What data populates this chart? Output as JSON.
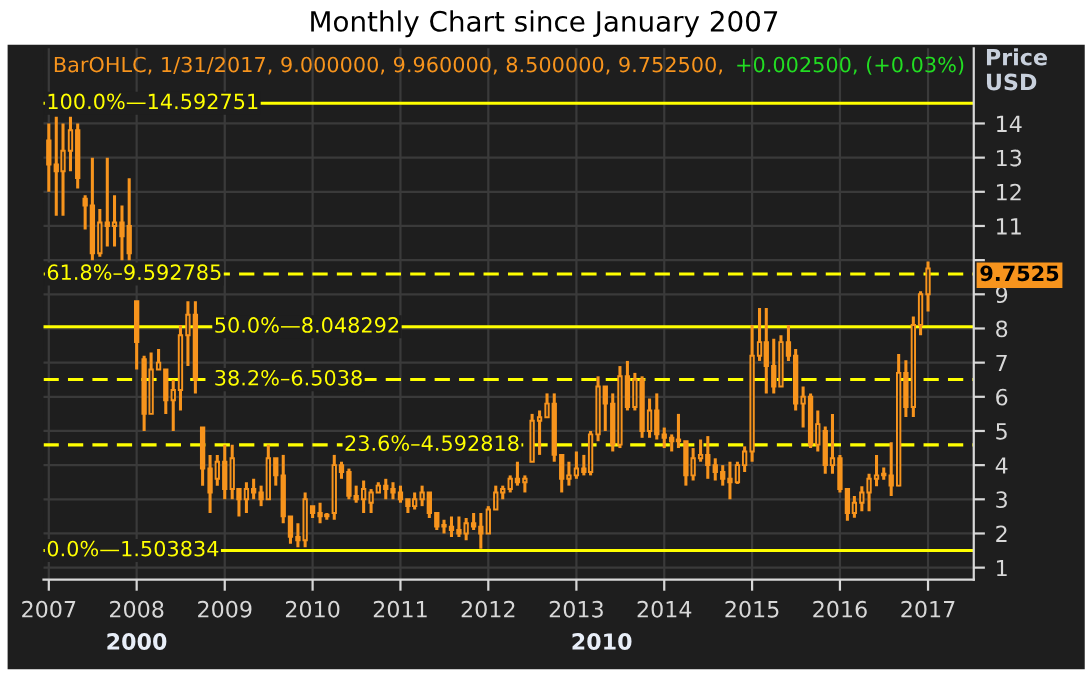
{
  "chart_data": {
    "type": "candlestick",
    "title": "Monthly Chart since January 2007",
    "ylabel": "Price\nUSD",
    "x": [
      "2007-01",
      "2007-02",
      "2007-03",
      "2007-04",
      "2007-05",
      "2007-06",
      "2007-07",
      "2007-08",
      "2007-09",
      "2007-10",
      "2007-11",
      "2007-12",
      "2008-01",
      "2008-02",
      "2008-03",
      "2008-04",
      "2008-05",
      "2008-06",
      "2008-07",
      "2008-08",
      "2008-09",
      "2008-10",
      "2008-11",
      "2008-12",
      "2009-01",
      "2009-02",
      "2009-03",
      "2009-04",
      "2009-05",
      "2009-06",
      "2009-07",
      "2009-08",
      "2009-09",
      "2009-10",
      "2009-11",
      "2009-12",
      "2010-01",
      "2010-02",
      "2010-03",
      "2010-04",
      "2010-05",
      "2010-06",
      "2010-07",
      "2010-08",
      "2010-09",
      "2010-10",
      "2010-11",
      "2010-12",
      "2011-01",
      "2011-02",
      "2011-03",
      "2011-04",
      "2011-05",
      "2011-06",
      "2011-07",
      "2011-08",
      "2011-09",
      "2011-10",
      "2011-11",
      "2011-12",
      "2012-01",
      "2012-02",
      "2012-03",
      "2012-04",
      "2012-05",
      "2012-06",
      "2012-07",
      "2012-08",
      "2012-09",
      "2012-10",
      "2012-11",
      "2012-12",
      "2013-01",
      "2013-02",
      "2013-03",
      "2013-04",
      "2013-05",
      "2013-06",
      "2013-07",
      "2013-08",
      "2013-09",
      "2013-10",
      "2013-11",
      "2013-12",
      "2014-01",
      "2014-02",
      "2014-03",
      "2014-04",
      "2014-05",
      "2014-06",
      "2014-07",
      "2014-08",
      "2014-09",
      "2014-10",
      "2014-11",
      "2014-12",
      "2015-01",
      "2015-02",
      "2015-03",
      "2015-04",
      "2015-05",
      "2015-06",
      "2015-07",
      "2015-08",
      "2015-09",
      "2015-10",
      "2015-11",
      "2015-12",
      "2016-01",
      "2016-02",
      "2016-03",
      "2016-04",
      "2016-05",
      "2016-06",
      "2016-07",
      "2016-08",
      "2016-09",
      "2016-10",
      "2016-11",
      "2016-12",
      "2017-01"
    ],
    "series": [
      {
        "color": "#f7941d",
        "ohlc": [
          [
            13.5,
            14.0,
            12.0,
            12.8
          ],
          [
            12.8,
            14.2,
            11.3,
            12.6
          ],
          [
            12.6,
            14.0,
            11.3,
            13.2
          ],
          [
            13.2,
            14.2,
            12.6,
            13.8
          ],
          [
            13.8,
            14.0,
            12.1,
            12.4
          ],
          [
            11.8,
            11.9,
            10.9,
            11.6
          ],
          [
            11.6,
            13.0,
            10.0,
            10.2
          ],
          [
            10.2,
            11.5,
            10.1,
            11.1
          ],
          [
            11.1,
            13.0,
            10.4,
            11.0
          ],
          [
            11.0,
            11.9,
            10.4,
            11.1
          ],
          [
            11.1,
            11.6,
            10.0,
            10.7
          ],
          [
            11.0,
            12.4,
            10.0,
            10.2
          ],
          [
            8.8,
            8.8,
            6.8,
            7.6
          ],
          [
            7.1,
            7.2,
            5.0,
            5.5
          ],
          [
            5.5,
            7.3,
            5.5,
            6.8
          ],
          [
            6.8,
            7.4,
            6.8,
            7.0
          ],
          [
            6.8,
            6.8,
            5.5,
            5.9
          ],
          [
            5.9,
            6.5,
            5.0,
            6.2
          ],
          [
            6.2,
            8.1,
            5.6,
            7.8
          ],
          [
            7.8,
            8.8,
            6.9,
            8.4
          ],
          [
            8.4,
            8.8,
            6.1,
            6.5
          ],
          [
            5.1,
            5.1,
            3.4,
            3.9
          ],
          [
            3.9,
            4.3,
            2.6,
            3.2
          ],
          [
            3.6,
            4.3,
            3.4,
            4.1
          ],
          [
            4.1,
            4.6,
            3.0,
            3.3
          ],
          [
            3.3,
            4.6,
            3.0,
            4.2
          ],
          [
            3.3,
            3.3,
            2.5,
            3.0
          ],
          [
            3.0,
            3.5,
            2.6,
            3.3
          ],
          [
            3.3,
            3.6,
            3.0,
            3.2
          ],
          [
            3.2,
            3.4,
            2.8,
            3.0
          ],
          [
            3.0,
            4.6,
            3.0,
            4.2
          ],
          [
            4.2,
            4.2,
            3.4,
            3.7
          ],
          [
            3.7,
            4.3,
            2.3,
            2.5
          ],
          [
            2.5,
            2.5,
            1.7,
            1.9
          ],
          [
            1.9,
            2.3,
            1.6,
            1.8
          ],
          [
            1.8,
            3.2,
            1.6,
            3.0
          ],
          [
            2.8,
            2.8,
            2.45,
            2.6
          ],
          [
            2.6,
            2.9,
            2.3,
            2.5
          ],
          [
            2.5,
            2.6,
            2.4,
            2.55
          ],
          [
            2.6,
            4.3,
            2.4,
            4.0
          ],
          [
            4.0,
            4.1,
            3.6,
            3.8
          ],
          [
            3.8,
            3.9,
            3.0,
            3.1
          ],
          [
            3.1,
            3.4,
            2.9,
            3.0
          ],
          [
            3.0,
            3.55,
            2.6,
            3.3
          ],
          [
            2.9,
            3.3,
            2.6,
            3.2
          ],
          [
            3.2,
            3.5,
            3.2,
            3.4
          ],
          [
            3.4,
            3.6,
            3.0,
            3.3
          ],
          [
            3.3,
            3.5,
            3.0,
            3.2
          ],
          [
            3.2,
            3.4,
            2.9,
            3.0
          ],
          [
            3.0,
            3.0,
            2.6,
            2.8
          ],
          [
            2.8,
            3.2,
            2.7,
            3.0
          ],
          [
            3.0,
            3.4,
            2.8,
            3.2
          ],
          [
            3.2,
            3.2,
            2.45,
            2.6
          ],
          [
            2.6,
            2.6,
            2.1,
            2.2
          ],
          [
            2.2,
            2.4,
            2.0,
            2.25
          ],
          [
            2.2,
            2.5,
            1.9,
            2.1
          ],
          [
            2.1,
            2.5,
            1.9,
            2.0
          ],
          [
            2.0,
            2.45,
            1.8,
            2.3
          ],
          [
            2.3,
            2.6,
            2.1,
            2.2
          ],
          [
            2.2,
            2.6,
            1.55,
            2.0
          ],
          [
            2.0,
            2.8,
            2.0,
            2.7
          ],
          [
            2.7,
            3.4,
            2.7,
            3.2
          ],
          [
            3.2,
            3.4,
            3.0,
            3.3
          ],
          [
            3.3,
            3.7,
            3.2,
            3.6
          ],
          [
            3.6,
            4.1,
            3.4,
            3.5
          ],
          [
            3.5,
            3.7,
            3.2,
            3.6
          ],
          [
            4.1,
            5.5,
            4.1,
            5.3
          ],
          [
            5.3,
            5.6,
            4.3,
            5.4
          ],
          [
            5.4,
            6.1,
            5.4,
            5.8
          ],
          [
            5.8,
            6.1,
            4.1,
            4.3
          ],
          [
            4.3,
            4.3,
            3.2,
            3.6
          ],
          [
            3.6,
            4.1,
            3.4,
            3.7
          ],
          [
            3.7,
            4.4,
            3.6,
            3.9
          ],
          [
            3.9,
            4.3,
            3.7,
            3.8
          ],
          [
            3.8,
            5.0,
            3.7,
            4.9
          ],
          [
            4.9,
            6.6,
            4.7,
            6.3
          ],
          [
            6.3,
            6.3,
            5.0,
            5.8
          ],
          [
            5.8,
            6.1,
            4.4,
            4.6
          ],
          [
            4.6,
            6.9,
            4.5,
            6.6
          ],
          [
            6.6,
            7.05,
            5.6,
            5.7
          ],
          [
            5.7,
            6.7,
            5.6,
            6.5
          ],
          [
            6.5,
            6.6,
            4.8,
            5.0
          ],
          [
            5.0,
            5.95,
            4.8,
            5.6
          ],
          [
            5.6,
            6.1,
            4.75,
            4.9
          ],
          [
            4.9,
            5.1,
            4.5,
            4.8
          ],
          [
            4.8,
            4.9,
            4.4,
            4.7
          ],
          [
            4.7,
            5.5,
            4.5,
            4.75
          ],
          [
            4.7,
            4.7,
            3.4,
            3.7
          ],
          [
            3.7,
            4.5,
            3.55,
            4.2
          ],
          [
            4.2,
            4.75,
            4.1,
            4.3
          ],
          [
            4.3,
            4.85,
            3.6,
            4.0
          ],
          [
            4.0,
            4.2,
            3.55,
            3.8
          ],
          [
            3.8,
            4.0,
            3.4,
            3.6
          ],
          [
            3.6,
            4.1,
            3.0,
            3.5
          ],
          [
            3.5,
            4.1,
            3.45,
            4.0
          ],
          [
            4.0,
            4.55,
            3.8,
            4.4
          ],
          [
            4.4,
            8.1,
            4.1,
            7.2
          ],
          [
            7.2,
            8.6,
            7.05,
            7.6
          ],
          [
            7.6,
            8.6,
            6.1,
            6.9
          ],
          [
            6.9,
            7.7,
            6.1,
            6.3
          ],
          [
            6.3,
            7.8,
            6.3,
            7.6
          ],
          [
            7.6,
            8.1,
            7.05,
            7.2
          ],
          [
            7.2,
            7.4,
            5.6,
            5.8
          ],
          [
            5.8,
            6.3,
            5.1,
            6.0
          ],
          [
            6.0,
            6.1,
            4.5,
            4.6
          ],
          [
            4.6,
            5.6,
            4.4,
            5.2
          ],
          [
            5.0,
            5.13,
            3.75,
            4.0
          ],
          [
            4.0,
            5.5,
            3.75,
            4.2
          ],
          [
            4.2,
            4.3,
            3.2,
            3.3
          ],
          [
            3.3,
            3.3,
            2.37,
            2.6
          ],
          [
            2.6,
            3.1,
            2.46,
            2.9
          ],
          [
            2.9,
            3.38,
            2.65,
            3.2
          ],
          [
            3.2,
            3.75,
            2.65,
            3.6
          ],
          [
            3.6,
            4.3,
            3.38,
            3.7
          ],
          [
            3.7,
            3.93,
            3.57,
            3.75
          ],
          [
            3.7,
            4.67,
            3.1,
            3.4
          ],
          [
            3.4,
            7.25,
            3.38,
            6.7
          ],
          [
            6.7,
            7.07,
            5.41,
            5.7
          ],
          [
            5.7,
            8.35,
            5.41,
            8.1
          ],
          [
            8.1,
            9.09,
            7.8,
            9.0
          ],
          [
            9.0,
            9.96,
            8.5,
            9.7525
          ]
        ]
      }
    ],
    "xlim": [
      "2006-12-10",
      "2017-07-10"
    ],
    "xticks": [
      {
        "value": "2007-01",
        "label": "2007"
      },
      {
        "value": "2008-01",
        "label": "2008"
      },
      {
        "value": "2009-01",
        "label": "2009"
      },
      {
        "value": "2010-01",
        "label": "2010"
      },
      {
        "value": "2011-01",
        "label": "2011"
      },
      {
        "value": "2012-01",
        "label": "2012"
      },
      {
        "value": "2013-01",
        "label": "2013"
      },
      {
        "value": "2014-01",
        "label": "2014"
      },
      {
        "value": "2015-01",
        "label": "2015"
      },
      {
        "value": "2016-01",
        "label": "2016"
      },
      {
        "value": "2017-01",
        "label": "2017"
      }
    ],
    "ylim": [
      0.65,
      16.2
    ],
    "yticks": [
      1,
      2,
      3,
      4,
      5,
      6,
      7,
      8,
      9,
      {
        "value": 10,
        "label": null
      },
      11,
      12,
      13,
      14
    ],
    "grid": true,
    "ref_lines": [
      {
        "axis": "y",
        "value": 14.592751,
        "label": "100.0%—14.592751",
        "color": "#ffff00",
        "line_style": "solid"
      },
      {
        "axis": "y",
        "value": 9.592785,
        "label": "61.8%–9.592785",
        "color": "#ffff00",
        "line_style": "dashed"
      },
      {
        "axis": "y",
        "value": 8.048292,
        "label": "50.0%—8.048292",
        "color": "#ffff00",
        "line_style": "solid"
      },
      {
        "axis": "y",
        "value": 6.5038,
        "label": "38.2%–6.5038",
        "color": "#ffff00",
        "line_style": "dashed"
      },
      {
        "axis": "y",
        "value": 4.592818,
        "label": "23.6%–4.592818",
        "color": "#ffff00",
        "line_style": "dashed"
      },
      {
        "axis": "y",
        "value": 1.503834,
        "label": "0.0%—1.503834",
        "color": "#ffff00",
        "line_style": "solid"
      }
    ],
    "annotations": [
      "BarOHLC, 1/31/2017, 9.000000, 9.960000, 8.500000, 9.752500,",
      "+0.002500, (+0.03%)",
      "9.7525",
      "2000",
      "2010"
    ]
  }
}
